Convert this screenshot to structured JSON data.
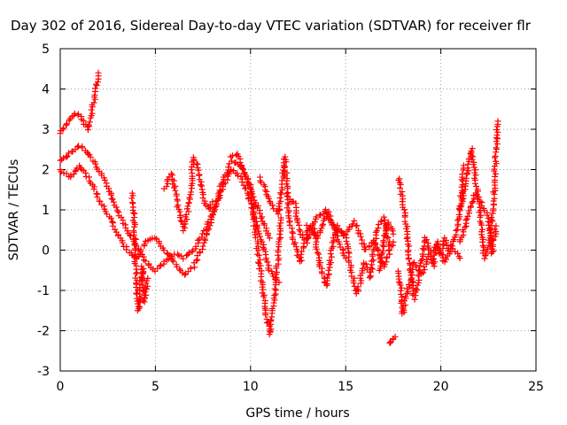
{
  "chart_data": {
    "type": "scatter",
    "title": "Day 302 of 2016, Sidereal Day-to-day VTEC variation (SDTVAR) for receiver flr",
    "xlabel": "GPS time / hours",
    "ylabel": "SDTVAR / TECUs",
    "xlim": [
      0,
      25
    ],
    "ylim": [
      -3,
      5
    ],
    "x_ticks": [
      "0",
      "5",
      "10",
      "15",
      "20",
      "25"
    ],
    "y_ticks": [
      "-3",
      "-2",
      "-1",
      "0",
      "1",
      "2",
      "3",
      "4",
      "5"
    ],
    "grid": true,
    "marker": "+",
    "color": "#ff0000",
    "series": [
      {
        "x": [
          0.0,
          0.3,
          0.6,
          0.9,
          1.2,
          1.5,
          1.8,
          2.0
        ],
        "y": [
          2.9,
          3.1,
          3.3,
          3.4,
          3.2,
          3.0,
          3.8,
          4.4
        ]
      },
      {
        "x": [
          0.0,
          0.5,
          1.0,
          1.5,
          2.0,
          2.5,
          3.0,
          3.5,
          4.0,
          4.5,
          5.0,
          5.5,
          6.0,
          6.5,
          7.0,
          7.5,
          8.0,
          8.5,
          9.0,
          9.5,
          10.0,
          10.5,
          11.0,
          11.5
        ],
        "y": [
          2.2,
          2.4,
          2.6,
          2.4,
          2.0,
          1.6,
          1.0,
          0.5,
          0.1,
          -0.3,
          -0.5,
          -0.3,
          -0.1,
          -0.2,
          0.0,
          0.4,
          0.9,
          1.5,
          2.0,
          1.8,
          1.2,
          0.4,
          -0.5,
          -0.8
        ]
      },
      {
        "x": [
          0.0,
          0.5,
          1.0,
          1.5,
          2.0,
          2.5,
          3.0,
          3.5,
          4.0,
          4.5,
          5.0,
          5.5,
          6.0,
          6.5,
          7.0,
          7.5,
          8.0,
          8.5,
          9.0,
          9.5,
          10.0,
          10.5,
          11.0
        ],
        "y": [
          2.0,
          1.8,
          2.1,
          1.8,
          1.3,
          0.9,
          0.4,
          0.0,
          -0.2,
          0.2,
          0.3,
          0.0,
          -0.3,
          -0.6,
          -0.4,
          0.1,
          0.8,
          1.7,
          2.2,
          2.1,
          1.5,
          0.9,
          0.3
        ]
      },
      {
        "x": [
          3.8,
          3.9,
          4.0,
          4.1,
          4.2,
          4.3,
          4.4,
          4.5,
          4.6
        ],
        "y": [
          1.4,
          0.5,
          -0.8,
          -1.5,
          -1.2,
          -0.4,
          -1.3,
          -1.0,
          -0.7
        ]
      },
      {
        "x": [
          5.5,
          5.8,
          6.0,
          6.2,
          6.5,
          6.8,
          7.0,
          7.2,
          7.5,
          7.8,
          8.0
        ],
        "y": [
          1.5,
          1.9,
          1.6,
          1.0,
          0.5,
          1.2,
          2.3,
          2.1,
          1.3,
          1.0,
          1.2
        ]
      },
      {
        "x": [
          9.0,
          9.3,
          9.6,
          10.0,
          10.3,
          10.6,
          10.8,
          11.0,
          11.3,
          11.6
        ],
        "y": [
          2.3,
          2.4,
          2.0,
          1.6,
          0.3,
          -0.8,
          -1.5,
          -2.1,
          -1.0,
          0.8
        ]
      },
      {
        "x": [
          10.5,
          11.0,
          11.5,
          11.8,
          12.0,
          12.3,
          12.6,
          13.0,
          13.5,
          14.0,
          14.5,
          15.0
        ],
        "y": [
          1.8,
          1.2,
          0.9,
          2.3,
          0.8,
          0.2,
          -0.3,
          0.5,
          0.8,
          1.0,
          0.4,
          -0.2
        ]
      },
      {
        "x": [
          12.0,
          12.3,
          12.6,
          13.0,
          13.3,
          13.6,
          14.0,
          14.3,
          14.6,
          15.0,
          15.3,
          15.6,
          16.0,
          16.3,
          16.6,
          17.0,
          17.3
        ],
        "y": [
          1.3,
          1.2,
          0.4,
          0.2,
          0.6,
          -0.3,
          -0.9,
          0.1,
          0.6,
          0.3,
          -0.5,
          -1.1,
          -0.3,
          -0.7,
          0.5,
          0.8,
          0.1
        ]
      },
      {
        "x": [
          13.0,
          13.5,
          14.0,
          14.5,
          15.0,
          15.5,
          16.0,
          16.5,
          17.0,
          17.5
        ],
        "y": [
          0.6,
          0.3,
          0.9,
          0.5,
          0.4,
          0.7,
          0.0,
          0.2,
          -0.4,
          0.2
        ]
      },
      {
        "x": [
          16.8,
          17.0,
          17.2,
          17.5
        ],
        "y": [
          -0.5,
          0.2,
          0.7,
          0.4
        ]
      },
      {
        "x": [
          17.3,
          17.4,
          17.5,
          17.6
        ],
        "y": [
          -2.3,
          -2.25,
          -2.2,
          -2.15
        ]
      },
      {
        "x": [
          17.8,
          18.0,
          18.2,
          18.4,
          18.6,
          18.8,
          19.0,
          19.2,
          19.4,
          19.6,
          19.8,
          20.0,
          20.2,
          20.4,
          20.6,
          20.8,
          21.0,
          21.2
        ],
        "y": [
          1.8,
          1.2,
          0.6,
          -0.5,
          -1.2,
          -0.8,
          -0.2,
          0.3,
          0.0,
          -0.4,
          0.2,
          -0.1,
          0.3,
          0.0,
          0.2,
          0.4,
          0.9,
          2.1
        ]
      },
      {
        "x": [
          17.8,
          18.0,
          18.3,
          18.6,
          19.0,
          19.4,
          19.8,
          20.2,
          20.6,
          21.0
        ],
        "y": [
          -0.5,
          -1.6,
          -0.9,
          -0.3,
          -0.6,
          -0.1,
          0.1,
          -0.3,
          0.1,
          -0.2
        ]
      },
      {
        "x": [
          21.0,
          21.3,
          21.6,
          22.0,
          22.3,
          22.6,
          22.8,
          23.0
        ],
        "y": [
          1.0,
          1.6,
          2.5,
          1.2,
          -0.2,
          0.3,
          1.5,
          3.2
        ]
      },
      {
        "x": [
          21.0,
          21.4,
          21.8,
          22.2,
          22.5,
          22.7,
          22.9
        ],
        "y": [
          0.2,
          0.8,
          1.4,
          1.1,
          0.8,
          -0.1,
          0.6
        ]
      }
    ]
  }
}
